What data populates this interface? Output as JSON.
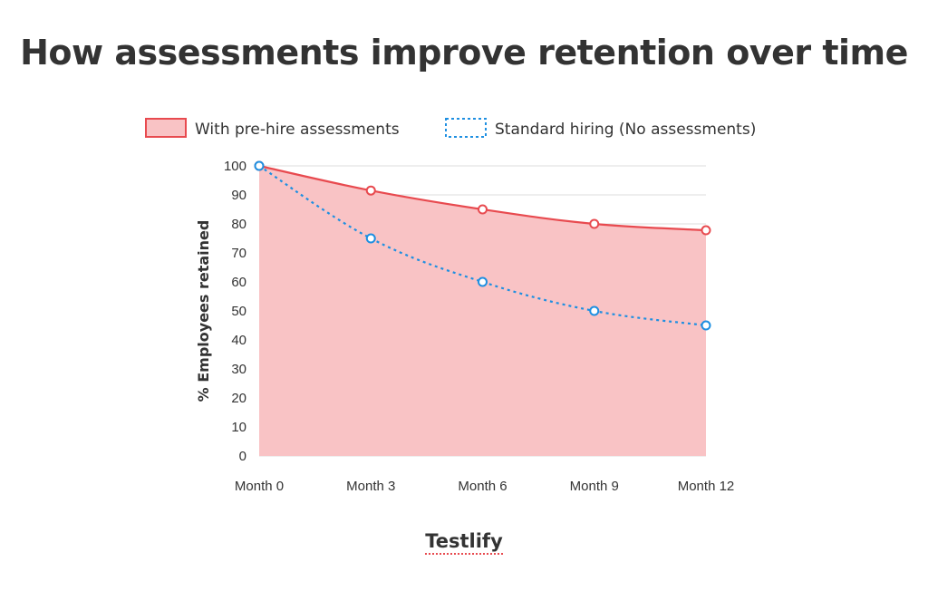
{
  "chart_data": {
    "type": "area",
    "title": "How assessments improve retention over time",
    "ylabel": "% Employees retained",
    "xlabel": "",
    "categories": [
      "Month 0",
      "Month 3",
      "Month 6",
      "Month 9",
      "Month 12"
    ],
    "ylim": [
      0,
      100
    ],
    "yticks": [
      0,
      10,
      20,
      30,
      40,
      50,
      60,
      70,
      80,
      90,
      100
    ],
    "grid": true,
    "legend": "top",
    "series": [
      {
        "name": "With pre-hire assessments",
        "values": [
          100,
          91.5,
          85,
          80,
          77.8
        ],
        "style": "filled-area",
        "line_color": "#e84a4f",
        "fill_color": "#f9c3c5"
      },
      {
        "name": "Standard hiring (No assessments)",
        "values": [
          100,
          75,
          60,
          50,
          45
        ],
        "style": "dotted-line",
        "line_color": "#1e8fe1"
      }
    ]
  },
  "brand": "Testlify"
}
